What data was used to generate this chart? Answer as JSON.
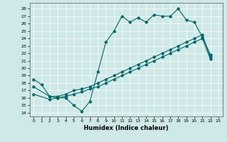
{
  "xlabel": "Humidex (Indice chaleur)",
  "bg_color": "#cfe8e8",
  "line_color": "#006666",
  "xlim": [
    -0.5,
    23.5
  ],
  "ylim": [
    13.5,
    28.8
  ],
  "xticks": [
    0,
    1,
    2,
    3,
    4,
    5,
    6,
    7,
    8,
    9,
    10,
    11,
    12,
    13,
    14,
    15,
    16,
    17,
    18,
    19,
    20,
    21,
    22,
    23
  ],
  "yticks": [
    14,
    15,
    16,
    17,
    18,
    19,
    20,
    21,
    22,
    23,
    24,
    25,
    26,
    27,
    28
  ],
  "line1_x": [
    0,
    1,
    2,
    3,
    4,
    5,
    6,
    7,
    8,
    9,
    10,
    11,
    12,
    13,
    14,
    15,
    16,
    17,
    18,
    19,
    20,
    21,
    22
  ],
  "line1_y": [
    18.5,
    17.8,
    16.2,
    16.0,
    16.0,
    15.0,
    14.2,
    15.5,
    19.5,
    23.5,
    25.0,
    27.0,
    26.2,
    26.8,
    26.2,
    27.2,
    27.0,
    27.0,
    28.0,
    26.5,
    26.2,
    24.2,
    21.8
  ],
  "line2_x": [
    0,
    2,
    3,
    4,
    5,
    6,
    7,
    8,
    9,
    10,
    11,
    12,
    13,
    14,
    15,
    16,
    17,
    18,
    19,
    20,
    21,
    22
  ],
  "line2_y": [
    17.5,
    16.2,
    16.2,
    16.5,
    17.0,
    17.2,
    17.5,
    18.0,
    18.5,
    19.0,
    19.5,
    20.0,
    20.5,
    21.0,
    21.5,
    22.0,
    22.5,
    23.0,
    23.5,
    24.0,
    24.5,
    21.5
  ],
  "line3_x": [
    0,
    2,
    3,
    4,
    5,
    6,
    7,
    8,
    9,
    10,
    11,
    12,
    13,
    14,
    15,
    16,
    17,
    18,
    19,
    20,
    21,
    22
  ],
  "line3_y": [
    16.5,
    15.8,
    16.0,
    16.2,
    16.5,
    16.8,
    17.2,
    17.5,
    18.0,
    18.5,
    19.0,
    19.5,
    20.0,
    20.5,
    21.0,
    21.5,
    22.0,
    22.5,
    23.0,
    23.5,
    24.0,
    21.2
  ]
}
